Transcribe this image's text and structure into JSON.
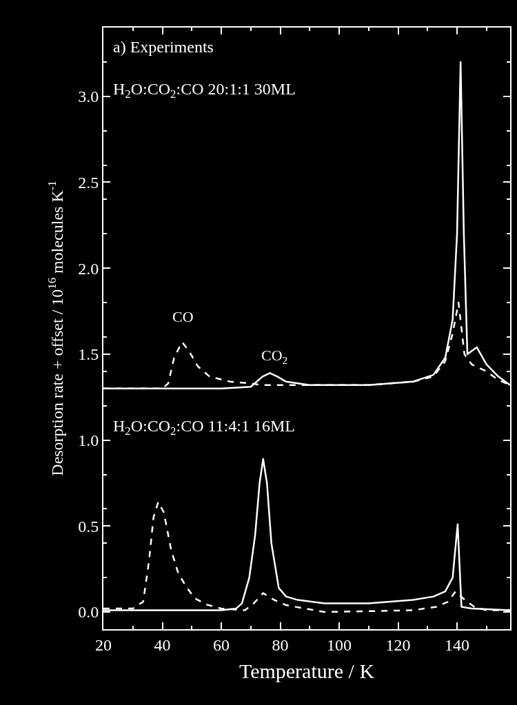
{
  "chart_data": {
    "type": "line",
    "xlabel": "Temperature / K",
    "ylabel": "Desorption rate + offset / 10$^{16}$ molecules K$^{-1}$",
    "xlim": [
      20,
      158
    ],
    "ylim": [
      -0.1,
      3.4
    ],
    "xticks": [
      20,
      40,
      60,
      80,
      100,
      120,
      140
    ],
    "yticks": [
      {
        "value": 0,
        "label": "0.0"
      },
      {
        "value": 0.5,
        "label": "0.5"
      },
      {
        "value": 1,
        "label": "1.0"
      },
      {
        "value": 1.5,
        "label": "1.5"
      },
      {
        "value": 2,
        "label": "2.0"
      },
      {
        "value": 2.5,
        "label": "2.5"
      },
      {
        "value": 3,
        "label": "3.0"
      }
    ],
    "series": [
      {
        "color": "#ffffff",
        "line_style": "solid",
        "x": [
          20,
          40,
          60,
          70,
          72,
          74,
          76.5,
          79,
          82,
          90,
          110,
          125,
          132,
          136,
          138.5,
          140,
          141.2,
          142.3,
          143.5,
          146.7,
          150,
          154,
          158
        ],
        "values": [
          1.3,
          1.3,
          1.3,
          1.31,
          1.34,
          1.37,
          1.39,
          1.37,
          1.34,
          1.32,
          1.32,
          1.34,
          1.38,
          1.48,
          1.7,
          2.2,
          3.2,
          2.2,
          1.5,
          1.54,
          1.44,
          1.37,
          1.32
        ]
      },
      {
        "color": "#ffffff",
        "line_style": "dashed",
        "x": [
          20,
          40,
          42,
          44,
          46.7,
          49,
          52,
          56,
          63,
          70,
          74,
          78,
          85,
          110,
          125,
          132,
          136,
          138.5,
          140.5,
          142.5,
          145,
          150,
          154,
          158
        ],
        "values": [
          1.3,
          1.3,
          1.33,
          1.48,
          1.57,
          1.52,
          1.43,
          1.37,
          1.34,
          1.33,
          1.32,
          1.32,
          1.32,
          1.32,
          1.34,
          1.37,
          1.46,
          1.62,
          1.8,
          1.5,
          1.44,
          1.4,
          1.35,
          1.32
        ]
      },
      {
        "color": "#ffffff",
        "line_style": "solid",
        "x": [
          20,
          40,
          60,
          65,
          67,
          69.5,
          71.5,
          73,
          74.2,
          75.5,
          77,
          79.5,
          82,
          86,
          95,
          110,
          125,
          132,
          136,
          138.5,
          140.2,
          141.5,
          145,
          158
        ],
        "values": [
          0.01,
          0.01,
          0.01,
          0.02,
          0.05,
          0.2,
          0.45,
          0.75,
          0.89,
          0.75,
          0.4,
          0.14,
          0.09,
          0.07,
          0.05,
          0.05,
          0.07,
          0.09,
          0.12,
          0.2,
          0.51,
          0.03,
          0.02,
          0.01
        ]
      },
      {
        "color": "#ffffff",
        "line_style": "dashed",
        "x": [
          20,
          30,
          33.5,
          35.5,
          37,
          38.6,
          40.5,
          43,
          45.5,
          48.4,
          51,
          54.7,
          60,
          68,
          71,
          74.2,
          78,
          82,
          95,
          125,
          133,
          137,
          139.5,
          142,
          145.8,
          150,
          158
        ],
        "values": [
          0.02,
          0.02,
          0.06,
          0.3,
          0.55,
          0.64,
          0.58,
          0.36,
          0.22,
          0.14,
          0.08,
          0.045,
          0.02,
          0.01,
          0.05,
          0.11,
          0.07,
          0.04,
          0.0,
          0.01,
          0.03,
          0.06,
          0.12,
          0.08,
          0.03,
          0.01,
          0.01
        ]
      }
    ],
    "annotations": [
      "a) Experiments",
      "H$_{2}$O:CO$_{2}$:CO 20:1:1 30ML",
      "H$_{2}$O:CO$_{2}$:CO 11:4:1 16ML",
      "CO",
      "CO$_{2}$"
    ]
  }
}
